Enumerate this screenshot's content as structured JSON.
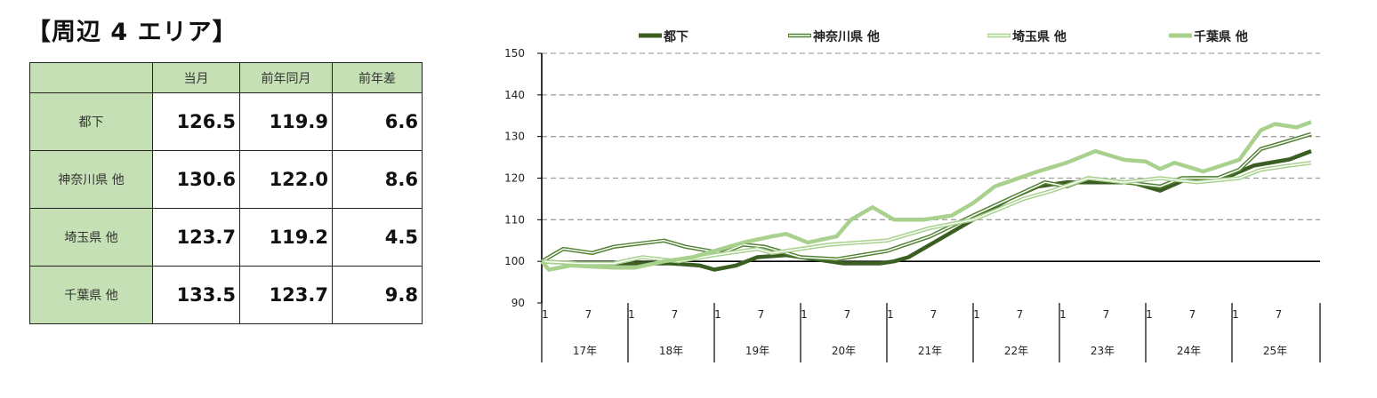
{
  "title": "【周辺 4 エリア】",
  "table": {
    "headers": [
      "",
      "当月",
      "前年同月",
      "前年差"
    ],
    "rows": [
      {
        "label": "都下",
        "current": "126.5",
        "prev_year": "119.9",
        "diff": "6.6"
      },
      {
        "label": "神奈川県 他",
        "current": "130.6",
        "prev_year": "122.0",
        "diff": "8.6"
      },
      {
        "label": "埼玉県 他",
        "current": "123.7",
        "prev_year": "119.2",
        "diff": "4.5"
      },
      {
        "label": "千葉県 他",
        "current": "133.5",
        "prev_year": "123.7",
        "diff": "9.8"
      }
    ]
  },
  "chart_data": {
    "type": "line",
    "title": "",
    "xlabel": "",
    "ylabel": "",
    "ylim": [
      90,
      150
    ],
    "yticks": [
      "90",
      "100",
      "110",
      "120",
      "130",
      "140",
      "150"
    ],
    "x_unit": "months since 17年1月",
    "month_ticks": [
      "1",
      "7"
    ],
    "years": [
      "17年",
      "18年",
      "19年",
      "20年",
      "21年",
      "22年",
      "23年",
      "24年",
      "25年"
    ],
    "legend_position": "top",
    "series": [
      {
        "name": "都下",
        "color": "#3b5e23",
        "style": "thick",
        "points": [
          [
            0,
            100
          ],
          [
            5,
            99.5
          ],
          [
            12,
            99.5
          ],
          [
            18,
            99.5
          ],
          [
            22,
            99
          ],
          [
            24,
            98
          ],
          [
            27,
            99
          ],
          [
            30,
            101
          ],
          [
            34,
            101.5
          ],
          [
            38,
            100.5
          ],
          [
            42,
            99.5
          ],
          [
            47,
            99.5
          ],
          [
            49,
            100
          ],
          [
            51,
            101
          ],
          [
            55,
            105
          ],
          [
            60,
            110
          ],
          [
            65,
            115
          ],
          [
            69,
            118
          ],
          [
            73,
            119
          ],
          [
            78,
            119
          ],
          [
            82,
            119
          ],
          [
            86,
            117
          ],
          [
            90,
            120
          ],
          [
            95,
            120
          ],
          [
            99,
            123
          ],
          [
            104,
            124.5
          ],
          [
            107,
            126.5
          ]
        ]
      },
      {
        "name": "神奈川県 他",
        "color": "#548235",
        "style": "double",
        "points": [
          [
            0,
            100
          ],
          [
            3,
            103
          ],
          [
            7,
            102
          ],
          [
            10,
            103.5
          ],
          [
            17,
            105
          ],
          [
            20,
            103.5
          ],
          [
            25,
            102
          ],
          [
            28,
            104
          ],
          [
            31,
            103.5
          ],
          [
            36,
            101
          ],
          [
            41,
            100.5
          ],
          [
            48,
            102.5
          ],
          [
            54,
            106
          ],
          [
            60,
            111
          ],
          [
            65,
            115
          ],
          [
            70,
            119
          ],
          [
            73,
            118
          ],
          [
            76,
            120
          ],
          [
            81,
            119
          ],
          [
            86,
            118
          ],
          [
            89,
            120
          ],
          [
            94,
            120
          ],
          [
            97,
            122
          ],
          [
            100,
            127
          ],
          [
            104,
            129
          ],
          [
            107,
            130.6
          ]
        ]
      },
      {
        "name": "埼玉県 他",
        "color": "#a9d18e",
        "style": "double",
        "points": [
          [
            0,
            100
          ],
          [
            5,
            99.5
          ],
          [
            10,
            99.5
          ],
          [
            14,
            101
          ],
          [
            19,
            100
          ],
          [
            24,
            101.5
          ],
          [
            30,
            103
          ],
          [
            32,
            102
          ],
          [
            40,
            104
          ],
          [
            48,
            105
          ],
          [
            54,
            108
          ],
          [
            60,
            110
          ],
          [
            67,
            115
          ],
          [
            71,
            117
          ],
          [
            76,
            120
          ],
          [
            81,
            119
          ],
          [
            86,
            120
          ],
          [
            91,
            119
          ],
          [
            97,
            120
          ],
          [
            100,
            122
          ],
          [
            104,
            123
          ],
          [
            107,
            123.7
          ]
        ]
      },
      {
        "name": "千葉県 他",
        "color": "#a9d18e",
        "style": "thick",
        "points": [
          [
            0,
            100
          ],
          [
            1,
            98
          ],
          [
            4,
            99
          ],
          [
            10,
            98.5
          ],
          [
            13,
            98.5
          ],
          [
            17,
            100
          ],
          [
            21,
            101
          ],
          [
            25,
            103
          ],
          [
            28,
            104.5
          ],
          [
            32,
            106
          ],
          [
            34,
            106.6
          ],
          [
            37,
            104.5
          ],
          [
            41,
            106
          ],
          [
            43,
            110
          ],
          [
            46,
            113
          ],
          [
            49,
            110
          ],
          [
            53,
            110
          ],
          [
            57,
            111
          ],
          [
            60,
            114
          ],
          [
            63,
            118
          ],
          [
            69,
            121.6
          ],
          [
            73,
            123.7
          ],
          [
            77,
            126.5
          ],
          [
            81,
            124.4
          ],
          [
            84,
            124
          ],
          [
            86,
            122.2
          ],
          [
            88,
            123.7
          ],
          [
            92,
            121.6
          ],
          [
            97,
            124.4
          ],
          [
            100,
            131.5
          ],
          [
            102,
            133
          ],
          [
            105,
            132.2
          ],
          [
            107,
            133.5
          ]
        ]
      }
    ]
  }
}
